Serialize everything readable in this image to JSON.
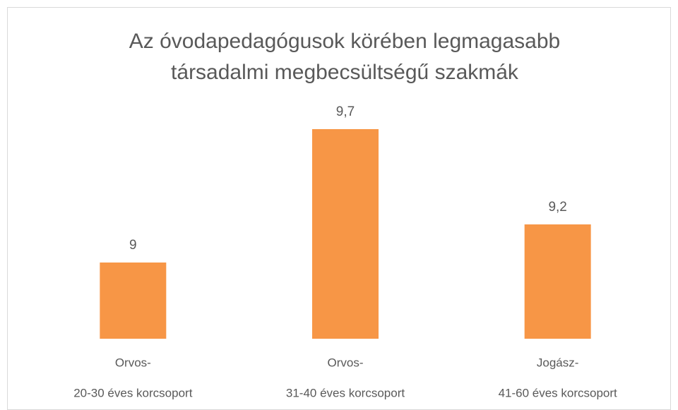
{
  "chart_data": {
    "type": "bar",
    "title": [
      "Az óvodapedagógusok körében legmagasabb",
      "társadalmi megbecsültségű szakmák"
    ],
    "categories": [
      [
        "Orvos-",
        "20-30 éves korcsoport"
      ],
      [
        "Orvos-",
        "31-40 éves korcsoport"
      ],
      [
        "Jogász-",
        "41-60 éves korcsoport"
      ]
    ],
    "values": [
      9,
      9.7,
      9.2
    ],
    "value_labels": [
      "9",
      "9,7",
      "9,2"
    ],
    "color": "#f79646",
    "ylim": [
      8.6,
      10
    ]
  }
}
